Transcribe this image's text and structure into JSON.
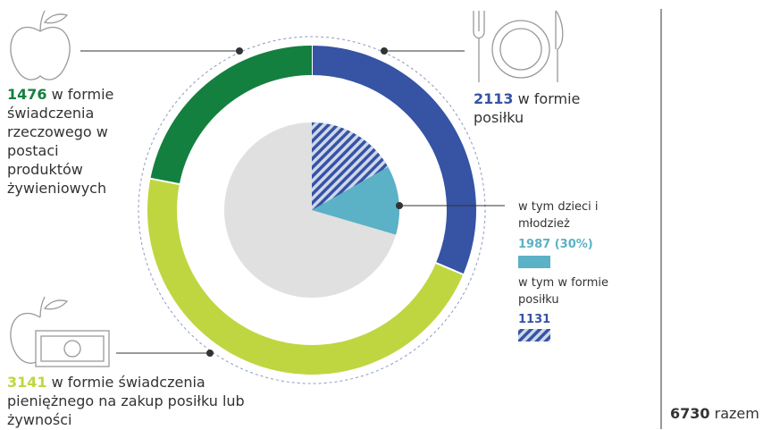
{
  "chart_data": {
    "type": "donut",
    "total": 6730,
    "total_label": "razem",
    "series": [
      {
        "name": "w formie posiłku",
        "value": 2113,
        "color": "#3653a4"
      },
      {
        "name": "w formie świadczenia pieniężnego na zakup posiłku lub żywności",
        "value": 3141,
        "color": "#bfd641"
      },
      {
        "name": "w formie świadczenia rzeczowego w postaci produktów żywieniowych",
        "value": 1476,
        "color": "#13803f"
      }
    ],
    "inner": [
      {
        "name": "w tym dzieci i młodzież",
        "value": 1987,
        "value_label": "1987 (30%)",
        "color": "#5bb1c6"
      },
      {
        "name": "w tym w formie posiłku",
        "value": 1131,
        "color": "#3653a4"
      }
    ]
  }
}
